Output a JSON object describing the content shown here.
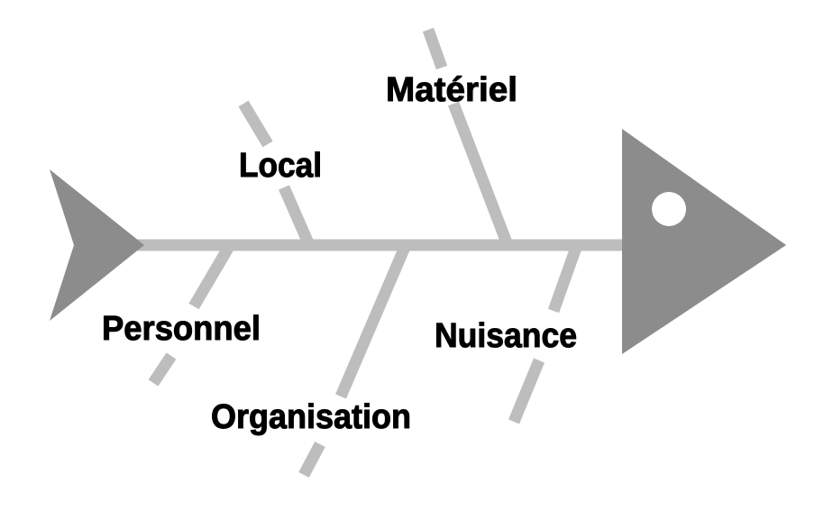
{
  "diagram": {
    "type": "fishbone",
    "colors": {
      "background": "#ffffff",
      "bone": "#bdbdbd",
      "head": "#8c8c8c",
      "tail": "#8c8c8c",
      "eye": "#ffffff",
      "text": "#000000"
    },
    "categories": {
      "local": "Local",
      "materiel": "Matériel",
      "personnel": "Personnel",
      "organisation": "Organisation",
      "nuisance": "Nuisance"
    }
  }
}
